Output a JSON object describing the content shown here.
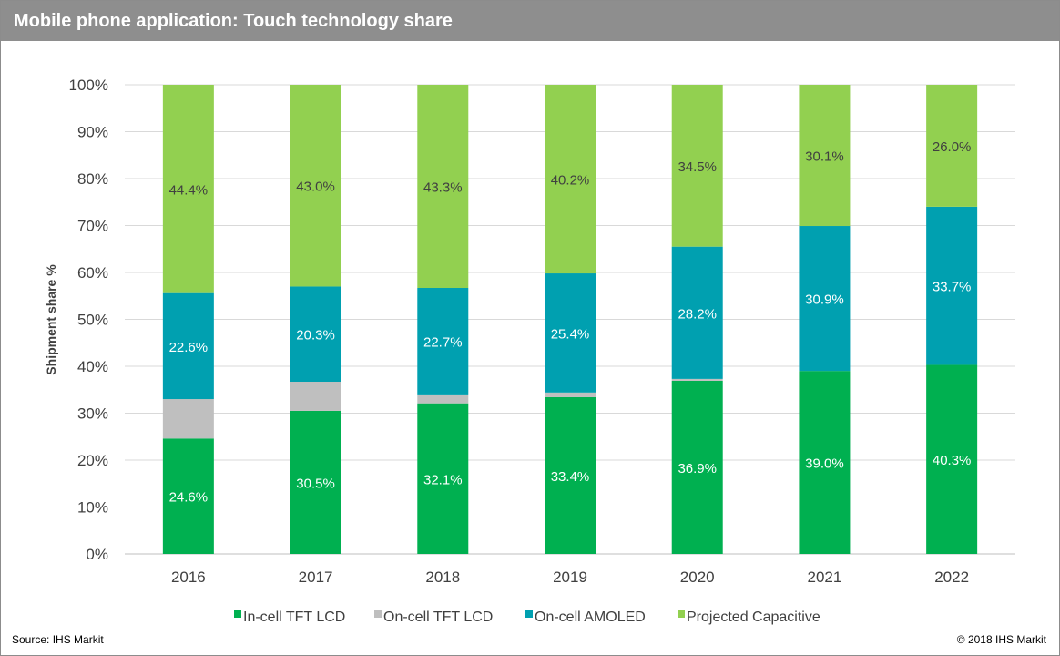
{
  "header": {
    "title": "Mobile phone application: Touch technology share"
  },
  "footer": {
    "source": "Source: IHS Markit",
    "copyright": "© 2018 IHS Markit"
  },
  "colors": {
    "in_cell": "#00b050",
    "on_cell_tft": "#bfbfbf",
    "amoled": "#00a0b0",
    "projected": "#92d050",
    "grid": "#d9d9d9"
  },
  "chart_data": {
    "type": "bar",
    "stacked": true,
    "title": "Mobile phone application: Touch technology share",
    "xlabel": "",
    "ylabel": "Shipment share %",
    "ylim": [
      0,
      100
    ],
    "yticks": [
      "0%",
      "10%",
      "20%",
      "30%",
      "40%",
      "50%",
      "60%",
      "70%",
      "80%",
      "90%",
      "100%"
    ],
    "grid": true,
    "legend_position": "bottom",
    "categories": [
      "2016",
      "2017",
      "2018",
      "2019",
      "2020",
      "2021",
      "2022"
    ],
    "series": [
      {
        "name": "In-cell TFT LCD",
        "values": [
          24.6,
          30.5,
          32.1,
          33.4,
          36.9,
          39.0,
          40.3
        ],
        "labels": [
          "24.6%",
          "30.5%",
          "32.1%",
          "33.4%",
          "36.9%",
          "39.0%",
          "40.3%"
        ]
      },
      {
        "name": "On-cell TFT LCD",
        "values": [
          8.4,
          6.2,
          1.9,
          1.0,
          0.4,
          0.0,
          0.0
        ],
        "labels": [
          "",
          "",
          "",
          "",
          "",
          "",
          ""
        ]
      },
      {
        "name": "On-cell AMOLED",
        "values": [
          22.6,
          20.3,
          22.7,
          25.4,
          28.2,
          30.9,
          33.7
        ],
        "labels": [
          "22.6%",
          "20.3%",
          "22.7%",
          "25.4%",
          "28.2%",
          "30.9%",
          "33.7%"
        ]
      },
      {
        "name": "Projected Capacitive",
        "values": [
          44.4,
          43.0,
          43.3,
          40.2,
          34.5,
          30.1,
          26.0
        ],
        "labels": [
          "44.4%",
          "43.0%",
          "43.3%",
          "40.2%",
          "34.5%",
          "30.1%",
          "26.0%"
        ]
      }
    ]
  }
}
